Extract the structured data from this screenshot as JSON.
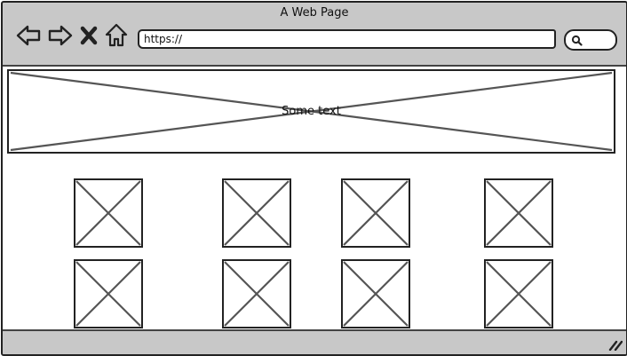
{
  "window": {
    "title": "A Web Page"
  },
  "toolbar": {
    "back_icon": "back-arrow-icon",
    "forward_icon": "forward-arrow-icon",
    "stop_icon": "close-icon",
    "home_icon": "home-icon",
    "url_value": "https://",
    "search_icon": "search-icon"
  },
  "hero": {
    "text": "Some text"
  },
  "thumbnails": {
    "rows": 2,
    "columns": 4
  },
  "statusbar": {
    "grip_icon": "resize-grip-icon"
  },
  "colors": {
    "chrome": "#c8c8c8",
    "border": "#222222",
    "placeholder_lines": "#555555",
    "content_bg": "#ffffff"
  }
}
